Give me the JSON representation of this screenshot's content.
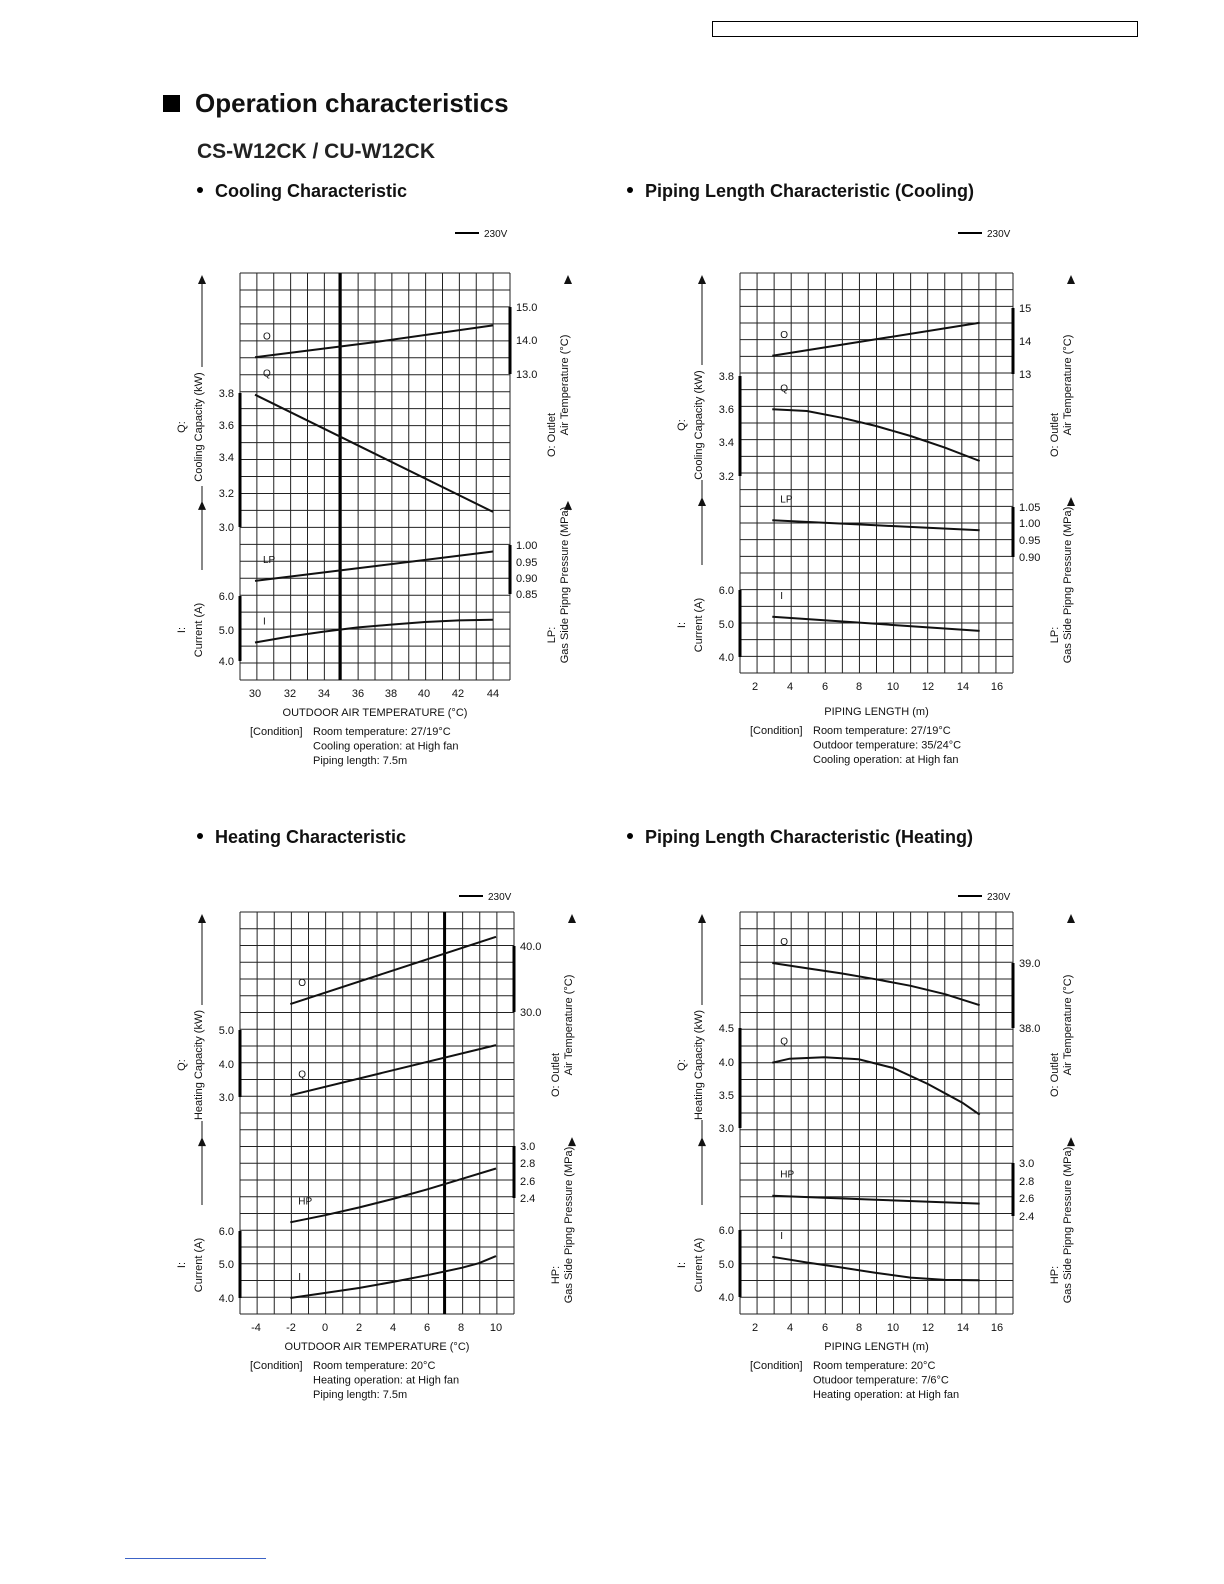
{
  "page": {
    "title": "Operation characteristics",
    "model": "CS-W12CK / CU-W12CK"
  },
  "chart_data": [
    {
      "type": "line",
      "title": "Cooling Characteristic",
      "legend": "230V",
      "xlabel": "OUTDOOR AIR TEMPERATURE (°C)",
      "x_ticks": [
        "30",
        "32",
        "34",
        "36",
        "38",
        "40",
        "42",
        "44"
      ],
      "xlim": [
        29,
        45
      ],
      "marker_x": 35,
      "left_axes": [
        {
          "label": "Q:",
          "sub": "Cooling Capacity (kW)",
          "ticks": [
            "3.8",
            "3.6",
            "3.4",
            "3.2",
            "3.0"
          ],
          "range": [
            3.0,
            3.8
          ]
        },
        {
          "label": "I:",
          "sub": "Current (A)",
          "ticks": [
            "6.0",
            "5.0",
            "4.0"
          ],
          "range": [
            4.0,
            6.0
          ]
        }
      ],
      "right_axes": [
        {
          "label": "O: Outlet",
          "sub": "Air Temperature (°C)",
          "ticks": [
            "15.0",
            "14.0",
            "13.0"
          ],
          "range": [
            13.0,
            15.0
          ]
        },
        {
          "label": "LP:",
          "sub": "Gas Side Pipng Pressure (MPa)",
          "ticks": [
            "1.00",
            "0.95",
            "0.90",
            "0.85"
          ],
          "range": [
            0.85,
            1.0
          ]
        }
      ],
      "series": [
        {
          "name": "O",
          "x": [
            30,
            37,
            44
          ],
          "y": [
            13.5,
            13.95,
            14.45
          ]
        },
        {
          "name": "Q",
          "x": [
            30,
            37,
            44
          ],
          "y": [
            3.79,
            3.44,
            3.09
          ]
        },
        {
          "name": "LP",
          "x": [
            30,
            37,
            44
          ],
          "y": [
            0.89,
            0.935,
            0.98
          ]
        },
        {
          "name": "I",
          "x": [
            30,
            32,
            34,
            36,
            38,
            40,
            42,
            44
          ],
          "y": [
            4.57,
            4.75,
            4.9,
            5.03,
            5.12,
            5.2,
            5.25,
            5.27
          ]
        }
      ],
      "condition": {
        "label": "[Condition]",
        "lines": [
          "Room temperature: 27/19°C",
          "Cooling operation: at High fan",
          "Piping length: 7.5m"
        ]
      }
    },
    {
      "type": "line",
      "title": "Piping Length Characteristic (Cooling)",
      "legend": "230V",
      "xlabel": "PIPING LENGTH (m)",
      "x_ticks": [
        "2",
        "4",
        "6",
        "8",
        "10",
        "12",
        "14",
        "16"
      ],
      "xlim": [
        1,
        16.5
      ],
      "marker_x": null,
      "left_axes": [
        {
          "label": "Q:",
          "sub": "Cooling Capacity (kW)",
          "ticks": [
            "3.8",
            "3.6",
            "3.4",
            "3.2"
          ],
          "range": [
            3.2,
            3.8
          ]
        },
        {
          "label": "I:",
          "sub": "Current (A)",
          "ticks": [
            "6.0",
            "5.0",
            "4.0"
          ],
          "range": [
            4.0,
            6.0
          ]
        }
      ],
      "right_axes": [
        {
          "label": "O: Outlet",
          "sub": "Air Temperature (°C)",
          "ticks": [
            "15",
            "14",
            "13"
          ],
          "range": [
            13,
            15
          ]
        },
        {
          "label": "LP:",
          "sub": "Gas Side Pipng Pressure (MPa)",
          "ticks": [
            "1.05",
            "1.00",
            "0.95",
            "0.90"
          ],
          "range": [
            0.9,
            1.05
          ]
        }
      ],
      "series": [
        {
          "name": "O",
          "x": [
            3,
            9,
            15
          ],
          "y": [
            13.55,
            14.05,
            14.55
          ]
        },
        {
          "name": "Q",
          "x": [
            3,
            5,
            7,
            9,
            11,
            13,
            15
          ],
          "y": [
            3.6,
            3.59,
            3.55,
            3.5,
            3.44,
            3.37,
            3.29
          ]
        },
        {
          "name": "LP",
          "x": [
            3,
            9,
            15
          ],
          "y": [
            1.01,
            0.995,
            0.98
          ]
        },
        {
          "name": "I",
          "x": [
            3,
            9,
            15
          ],
          "y": [
            5.2,
            4.99,
            4.78
          ]
        }
      ],
      "condition": {
        "label": "[Condition]",
        "lines": [
          "Room temperature: 27/19°C",
          "Outdoor temperature: 35/24°C",
          "Cooling operation: at High fan"
        ]
      }
    },
    {
      "type": "line",
      "title": "Heating Characteristic",
      "legend": "230V",
      "xlabel": "OUTDOOR AIR TEMPERATURE (°C)",
      "x_ticks": [
        "-4",
        "-2",
        "0",
        "2",
        "4",
        "6",
        "8",
        "10"
      ],
      "xlim": [
        -5,
        11
      ],
      "marker_x": 7,
      "left_axes": [
        {
          "label": "Q:",
          "sub": "Heating Capacity (kW)",
          "ticks": [
            "5.0",
            "4.0",
            "3.0"
          ],
          "range": [
            3.0,
            5.0
          ]
        },
        {
          "label": "I:",
          "sub": "Current (A)",
          "ticks": [
            "6.0",
            "5.0",
            "4.0"
          ],
          "range": [
            4.0,
            6.0
          ]
        }
      ],
      "right_axes": [
        {
          "label": "O: Outlet",
          "sub": "Air Temperature (°C)",
          "ticks": [
            "40.0",
            "30.0"
          ],
          "range": [
            30.0,
            40.0
          ]
        },
        {
          "label": "HP:",
          "sub": "Gas Side Pipng Pressure (MPa)",
          "ticks": [
            "3.0",
            "2.8",
            "2.6",
            "2.4"
          ],
          "range": [
            2.4,
            3.0
          ]
        }
      ],
      "series": [
        {
          "name": "O",
          "x": [
            -2,
            4,
            10
          ],
          "y": [
            31.2,
            36.3,
            41.4
          ]
        },
        {
          "name": "Q",
          "x": [
            -2,
            4,
            10
          ],
          "y": [
            3.05,
            3.8,
            4.55
          ]
        },
        {
          "name": "HP",
          "x": [
            -2,
            0,
            2,
            4,
            6,
            8,
            10
          ],
          "y": [
            2.12,
            2.2,
            2.29,
            2.39,
            2.5,
            2.62,
            2.74
          ]
        },
        {
          "name": "I",
          "x": [
            -2,
            0,
            2,
            4,
            6,
            8,
            9,
            10
          ],
          "y": [
            4.0,
            4.15,
            4.3,
            4.48,
            4.68,
            4.9,
            5.04,
            5.25
          ]
        }
      ],
      "condition": {
        "label": "[Condition]",
        "lines": [
          "Room temperature: 20°C",
          "Heating operation: at High fan",
          "Piping length: 7.5m"
        ]
      }
    },
    {
      "type": "line",
      "title": "Piping Length Characteristic (Heating)",
      "legend": "230V",
      "xlabel": "PIPING LENGTH (m)",
      "x_ticks": [
        "2",
        "4",
        "6",
        "8",
        "10",
        "12",
        "14",
        "16"
      ],
      "xlim": [
        1,
        16.5
      ],
      "marker_x": null,
      "left_axes": [
        {
          "label": "Q:",
          "sub": "Heating Capacity (kW)",
          "ticks": [
            "4.5",
            "4.0",
            "3.5",
            "3.0"
          ],
          "range": [
            3.0,
            4.5
          ]
        },
        {
          "label": "I:",
          "sub": "Current (A)",
          "ticks": [
            "6.0",
            "5.0",
            "4.0"
          ],
          "range": [
            4.0,
            6.0
          ]
        }
      ],
      "right_axes": [
        {
          "label": "O: Outlet",
          "sub": "Air Temperature (°C)",
          "ticks": [
            "39.0",
            "38.0"
          ],
          "range": [
            38.0,
            39.0
          ]
        },
        {
          "label": "HP:",
          "sub": "Gas Side Pipng Pressure (MPa)",
          "ticks": [
            "3.0",
            "2.8",
            "2.6",
            "2.4"
          ],
          "range": [
            2.4,
            3.0
          ]
        }
      ],
      "series": [
        {
          "name": "O",
          "x": [
            3,
            5,
            7,
            9,
            11,
            13,
            15
          ],
          "y": [
            39.0,
            38.92,
            38.84,
            38.75,
            38.65,
            38.52,
            38.35
          ]
        },
        {
          "name": "Q",
          "x": [
            3,
            4,
            6,
            8,
            10,
            12,
            14,
            15
          ],
          "y": [
            3.98,
            4.04,
            4.06,
            4.03,
            3.9,
            3.66,
            3.38,
            3.2
          ]
        },
        {
          "name": "HP",
          "x": [
            3,
            9,
            15
          ],
          "y": [
            2.63,
            2.585,
            2.54
          ]
        },
        {
          "name": "I",
          "x": [
            3,
            5,
            7,
            9,
            11,
            13,
            15
          ],
          "y": [
            5.2,
            5.03,
            4.88,
            4.72,
            4.58,
            4.51,
            4.5
          ]
        }
      ],
      "condition": {
        "label": "[Condition]",
        "lines": [
          "Room temperature: 20°C",
          "Otudoor temperature: 7/6°C",
          "Heating operation: at High fan"
        ]
      }
    }
  ]
}
